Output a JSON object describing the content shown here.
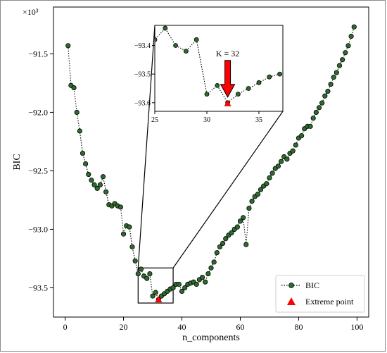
{
  "chart_data": {
    "type": "line",
    "xlabel": "n_components",
    "ylabel": "BIC",
    "y_exponent_label": "×10³",
    "xlim": [
      -4,
      104
    ],
    "ylim": [
      -93.75,
      -91.1
    ],
    "xticks": [
      0,
      20,
      40,
      60,
      80,
      100
    ],
    "yticks": [
      -93.5,
      -93.0,
      -92.5,
      -92.0,
      -91.5
    ],
    "ytick_labels": [
      "−93.5",
      "−93.0",
      "−92.5",
      "−92.0",
      "−91.5"
    ],
    "grid": false,
    "legend_position": "lower-right",
    "series": [
      {
        "name": "BIC",
        "style": "dotted line with dark green circle markers",
        "color": "#2e6b2e",
        "x": [
          1,
          2,
          3,
          4,
          5,
          6,
          7,
          8,
          9,
          10,
          11,
          12,
          13,
          14,
          15,
          16,
          17,
          18,
          19,
          20,
          21,
          22,
          23,
          24,
          25,
          26,
          27,
          28,
          29,
          30,
          31,
          32,
          33,
          34,
          35,
          36,
          37,
          38,
          39,
          40,
          41,
          42,
          43,
          44,
          45,
          46,
          47,
          48,
          49,
          50,
          51,
          52,
          53,
          54,
          55,
          56,
          57,
          58,
          59,
          60,
          61,
          62,
          63,
          64,
          65,
          66,
          67,
          68,
          69,
          70,
          71,
          72,
          73,
          74,
          75,
          76,
          77,
          78,
          79,
          80,
          81,
          82,
          83,
          84,
          85,
          86,
          87,
          88,
          89,
          90,
          91,
          92,
          93,
          94,
          95,
          96,
          97,
          98,
          99
        ],
        "y": [
          -91.43,
          -91.77,
          -91.79,
          -92.0,
          -92.16,
          -92.35,
          -92.44,
          -92.53,
          -92.58,
          -92.62,
          -92.65,
          -92.62,
          -92.55,
          -92.68,
          -92.79,
          -92.8,
          -92.78,
          -92.8,
          -92.81,
          -93.04,
          -92.97,
          -92.98,
          -93.15,
          -93.27,
          -93.38,
          -93.34,
          -93.4,
          -93.42,
          -93.38,
          -93.57,
          -93.54,
          -93.6,
          -93.57,
          -93.55,
          -93.53,
          -93.51,
          -93.5,
          -93.47,
          -93.47,
          -93.53,
          -93.5,
          -93.47,
          -93.46,
          -93.45,
          -93.47,
          -93.43,
          -93.41,
          -93.45,
          -93.38,
          -93.33,
          -93.28,
          -93.2,
          -93.15,
          -93.12,
          -93.08,
          -93.05,
          -93.03,
          -93.0,
          -92.98,
          -92.93,
          -92.9,
          -93.13,
          -92.82,
          -92.76,
          -92.72,
          -92.7,
          -92.66,
          -92.63,
          -92.61,
          -92.56,
          -92.52,
          -92.48,
          -92.46,
          -92.42,
          -92.38,
          -92.4,
          -92.35,
          -92.33,
          -92.28,
          -92.22,
          -92.2,
          -92.14,
          -92.12,
          -92.12,
          -92.05,
          -92.0,
          -91.96,
          -91.92,
          -91.86,
          -91.82,
          -91.76,
          -91.7,
          -91.66,
          -91.6,
          -91.55,
          -91.49,
          -91.43,
          -91.35,
          -91.27
        ]
      },
      {
        "name": "Extreme point",
        "style": "red triangle marker",
        "color": "#ff0000",
        "x": [
          32
        ],
        "y": [
          -93.6
        ]
      }
    ],
    "zoom_box": {
      "x": [
        25,
        37
      ],
      "y": [
        -93.63,
        -93.33
      ]
    },
    "inset": {
      "xlim": [
        25,
        37.3
      ],
      "ylim": [
        -93.63,
        -93.33
      ],
      "xticks": [
        25,
        30,
        35
      ],
      "yticks": [
        -93.6,
        -93.5,
        -93.4
      ],
      "ytick_labels": [
        "−93.6",
        "−93.5",
        "−93.4"
      ],
      "annotation": {
        "text": "K = 32",
        "x": 32,
        "y": -93.6
      }
    }
  }
}
